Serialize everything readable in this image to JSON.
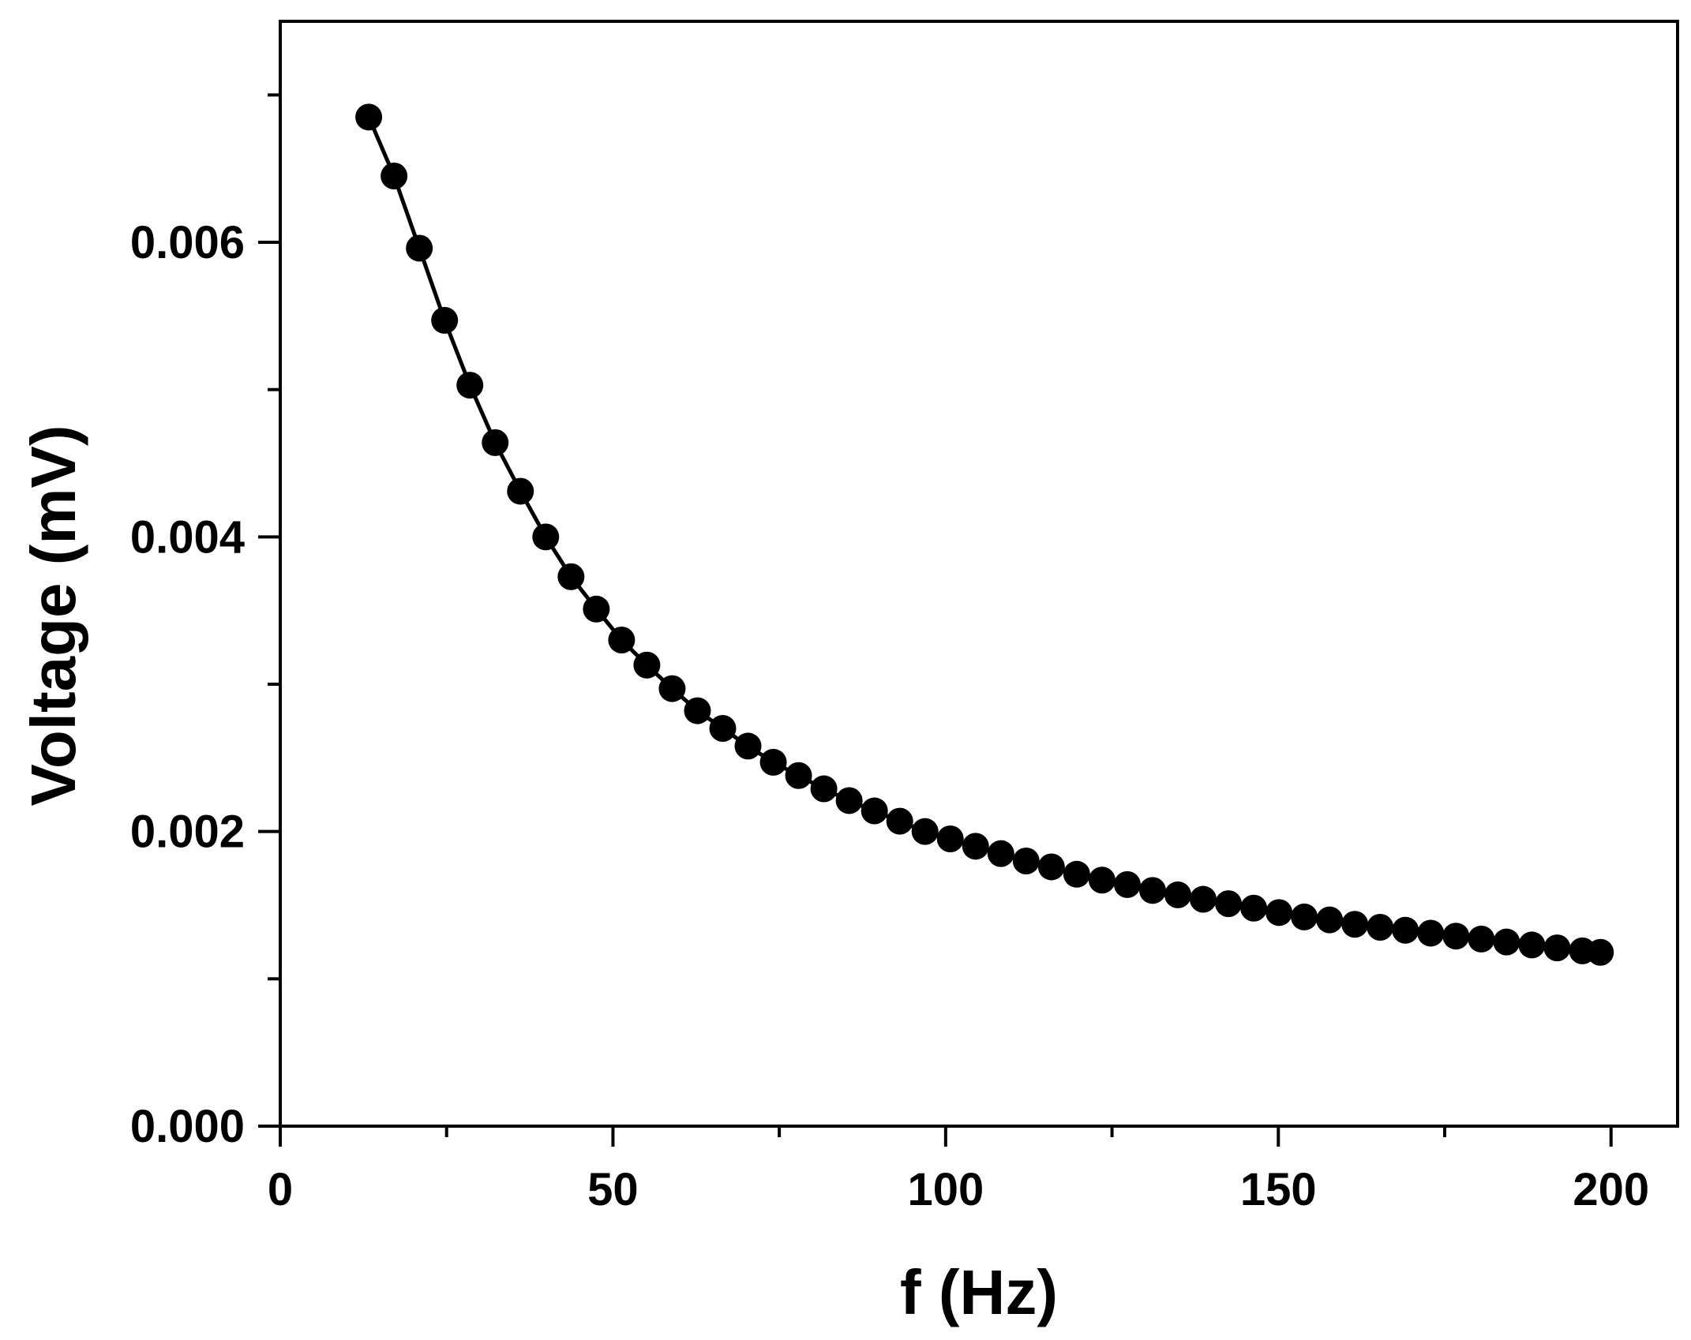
{
  "chart_data": {
    "type": "line",
    "xlabel": "f (Hz)",
    "ylabel": "Voltage (mV)",
    "xlim": [
      0,
      210
    ],
    "ylim": [
      0,
      0.0075
    ],
    "xticks": [
      0,
      50,
      100,
      150,
      200
    ],
    "xtick_labels": [
      "0",
      "50",
      "100",
      "150",
      "200"
    ],
    "xminor": [
      25,
      75,
      125,
      175
    ],
    "yticks": [
      0,
      0.002,
      0.004,
      0.006
    ],
    "ytick_labels": [
      "0.000",
      "0.002",
      "0.004",
      "0.006"
    ],
    "yminor": [
      0.001,
      0.003,
      0.005,
      0.007
    ],
    "grid": false,
    "marker": "filled-circle",
    "color": "#000000",
    "series": [
      {
        "x": [
          13.3,
          17.1,
          20.9,
          24.7,
          28.5,
          32.3,
          36.1,
          39.9,
          43.7,
          47.5,
          51.3,
          55.1,
          58.9,
          62.7,
          66.5,
          70.3,
          74.1,
          77.9,
          81.7,
          85.5,
          89.3,
          93.1,
          96.9,
          100.7,
          104.5,
          108.3,
          112.1,
          115.9,
          119.7,
          123.5,
          127.3,
          131.1,
          134.9,
          138.7,
          142.5,
          146.3,
          150.1,
          153.9,
          157.7,
          161.5,
          165.3,
          169.1,
          172.9,
          176.7,
          180.5,
          184.3,
          188.1,
          191.9,
          195.7,
          198.4
        ],
        "y": [
          0.00685,
          0.00645,
          0.00596,
          0.00547,
          0.00503,
          0.00464,
          0.00431,
          0.004,
          0.00373,
          0.00351,
          0.0033,
          0.00313,
          0.00297,
          0.00282,
          0.0027,
          0.00258,
          0.00247,
          0.00238,
          0.00229,
          0.00221,
          0.00214,
          0.00207,
          0.002,
          0.00195,
          0.0019,
          0.00185,
          0.0018,
          0.00176,
          0.00171,
          0.00167,
          0.00164,
          0.0016,
          0.00157,
          0.00154,
          0.00151,
          0.00148,
          0.00145,
          0.00142,
          0.0014,
          0.00137,
          0.00135,
          0.00133,
          0.00131,
          0.00129,
          0.00127,
          0.00125,
          0.00123,
          0.00121,
          0.00119,
          0.00118
        ]
      }
    ]
  }
}
